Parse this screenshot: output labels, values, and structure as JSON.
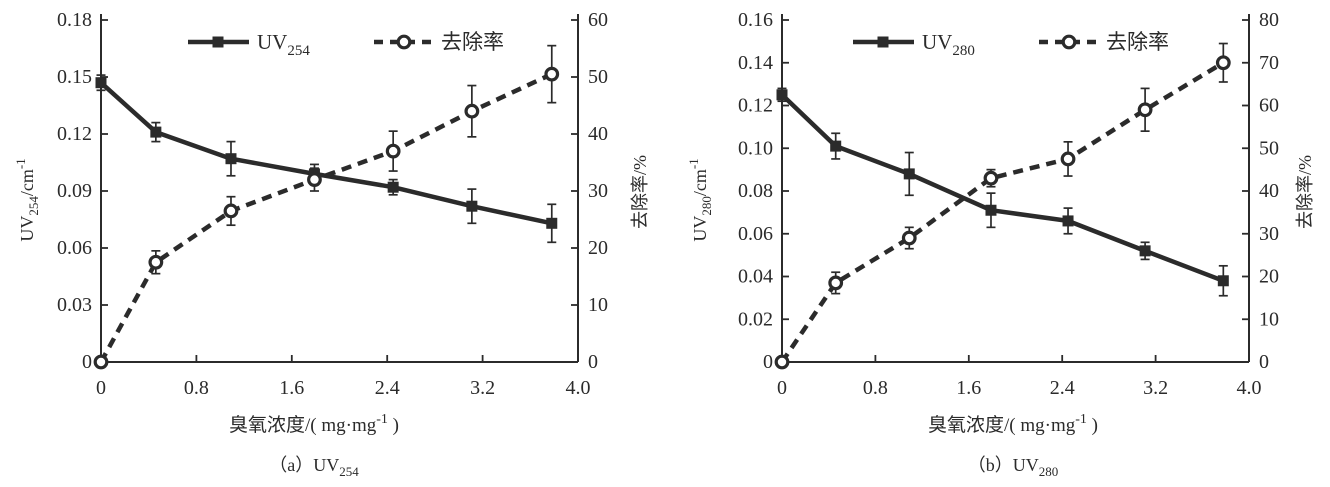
{
  "background": "#ffffff",
  "ink": "#2b2b2b",
  "chart_data": [
    {
      "panel": "a",
      "type": "line",
      "x": [
        0,
        0.46,
        1.09,
        1.79,
        2.45,
        3.11,
        3.78
      ],
      "x_ticks": [
        0,
        0.8,
        1.6,
        2.4,
        3.2,
        4.0
      ],
      "x_tick_labels": [
        "0",
        "0.8",
        "1.6",
        "2.4",
        "3.2",
        "4.0"
      ],
      "x_range": [
        0,
        4.0
      ],
      "x_label_segments": [
        {
          "t": "臭氧浓度/( mg·mg"
        },
        {
          "t": "-1",
          "style": "sup"
        },
        {
          "t": " )"
        }
      ],
      "y_left": {
        "range": [
          0,
          0.18
        ],
        "ticks": [
          0,
          0.03,
          0.06,
          0.09,
          0.12,
          0.15,
          0.18
        ],
        "tick_labels": [
          "0",
          "0.03",
          "0.06",
          "0.09",
          "0.12",
          "0.15",
          "0.18"
        ],
        "label_segments": [
          {
            "t": "UV"
          },
          {
            "t": "254",
            "style": "sub"
          },
          {
            "t": "/cm"
          },
          {
            "t": "-1",
            "style": "sup"
          }
        ]
      },
      "y_right": {
        "range": [
          0,
          60
        ],
        "ticks": [
          0,
          10,
          20,
          30,
          40,
          50,
          60
        ],
        "tick_labels": [
          "0",
          "10",
          "20",
          "30",
          "40",
          "50",
          "60"
        ],
        "label_segments": [
          {
            "t": "去除率/%"
          }
        ]
      },
      "series": [
        {
          "name": "UV254",
          "axis": "left",
          "line": "solid",
          "marker": "square",
          "values": [
            0.147,
            0.121,
            0.107,
            0.099,
            0.092,
            0.082,
            0.073
          ],
          "errors": [
            0.004,
            0.005,
            0.009,
            0.005,
            0.004,
            0.009,
            0.01
          ]
        },
        {
          "name": "去除率",
          "axis": "right",
          "line": "dashed",
          "marker": "circle",
          "values": [
            0,
            17.5,
            26.5,
            32,
            37,
            44,
            50.5
          ],
          "errors": [
            0,
            2,
            2.5,
            2,
            3.5,
            4.5,
            5
          ]
        }
      ],
      "legend": [
        {
          "marker": "square",
          "line": "solid",
          "label_segments": [
            {
              "t": "UV"
            },
            {
              "t": "254",
              "style": "sub"
            }
          ]
        },
        {
          "marker": "circle",
          "line": "dashed",
          "label_segments": [
            {
              "t": "去除率"
            }
          ]
        }
      ],
      "caption_segments": [
        {
          "t": "（a）UV"
        },
        {
          "t": "254",
          "style": "sub"
        }
      ]
    },
    {
      "panel": "b",
      "type": "line",
      "x": [
        0,
        0.46,
        1.09,
        1.79,
        2.45,
        3.11,
        3.78
      ],
      "x_ticks": [
        0,
        0.8,
        1.6,
        2.4,
        3.2,
        4.0
      ],
      "x_tick_labels": [
        "0",
        "0.8",
        "1.6",
        "2.4",
        "3.2",
        "4.0"
      ],
      "x_range": [
        0,
        4.0
      ],
      "x_label_segments": [
        {
          "t": "臭氧浓度/( mg·mg"
        },
        {
          "t": "-1",
          "style": "sup"
        },
        {
          "t": " )"
        }
      ],
      "y_left": {
        "range": [
          0,
          0.16
        ],
        "ticks": [
          0,
          0.02,
          0.04,
          0.06,
          0.08,
          0.1,
          0.12,
          0.14,
          0.16
        ],
        "tick_labels": [
          "0",
          "0.02",
          "0.04",
          "0.06",
          "0.08",
          "0.10",
          "0.12",
          "0.14",
          "0.16"
        ],
        "label_segments": [
          {
            "t": "UV"
          },
          {
            "t": "280",
            "style": "sub"
          },
          {
            "t": "/cm"
          },
          {
            "t": "-1",
            "style": "sup"
          }
        ]
      },
      "y_right": {
        "range": [
          0,
          80
        ],
        "ticks": [
          0,
          10,
          20,
          30,
          40,
          50,
          60,
          70,
          80
        ],
        "tick_labels": [
          "0",
          "10",
          "20",
          "30",
          "40",
          "50",
          "60",
          "70",
          "80"
        ],
        "label_segments": [
          {
            "t": "去除率/%"
          }
        ]
      },
      "series": [
        {
          "name": "UV280",
          "axis": "left",
          "line": "solid",
          "marker": "square",
          "values": [
            0.125,
            0.101,
            0.088,
            0.071,
            0.066,
            0.052,
            0.038
          ],
          "errors": [
            0.003,
            0.006,
            0.01,
            0.008,
            0.006,
            0.004,
            0.007
          ]
        },
        {
          "name": "去除率",
          "axis": "right",
          "line": "dashed",
          "marker": "circle",
          "values": [
            0,
            18.5,
            29,
            43,
            47.5,
            59,
            70
          ],
          "errors": [
            0,
            2.5,
            2.5,
            2,
            4,
            5,
            4.5
          ]
        }
      ],
      "legend": [
        {
          "marker": "square",
          "line": "solid",
          "label_segments": [
            {
              "t": "UV"
            },
            {
              "t": "280",
              "style": "sub"
            }
          ]
        },
        {
          "marker": "circle",
          "line": "dashed",
          "label_segments": [
            {
              "t": "去除率"
            }
          ]
        }
      ],
      "caption_segments": [
        {
          "t": "（b）UV"
        },
        {
          "t": "280",
          "style": "sub"
        }
      ]
    }
  ]
}
